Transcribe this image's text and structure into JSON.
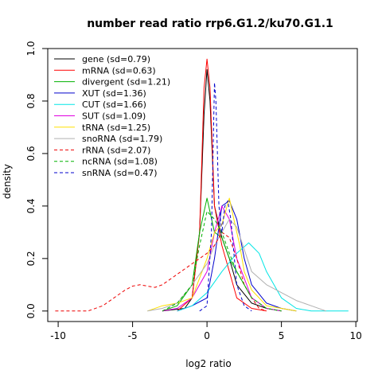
{
  "chart_data": {
    "type": "line",
    "title": "number read ratio rrp6.G1.2/ku70.G1.1",
    "xlabel": "log2 ratio",
    "ylabel": "density",
    "xlim": [
      -10.7,
      10.1
    ],
    "ylim": [
      -0.04,
      1.0
    ],
    "xticks": [
      -10,
      -5,
      0,
      5,
      10
    ],
    "xtick_labels": [
      "-10",
      "-5",
      "0",
      "5",
      "10"
    ],
    "yticks": [
      0.0,
      0.2,
      0.4,
      0.6,
      0.8,
      1.0
    ],
    "ytick_labels": [
      "0.0",
      "0.2",
      "0.4",
      "0.6",
      "0.8",
      "1.0"
    ],
    "grid": false,
    "legend_position": "top-left",
    "series": [
      {
        "name": "gene (sd=0.79)",
        "color": "#000000",
        "dash": "solid",
        "x": [
          -3,
          -1.5,
          -1,
          -0.5,
          -0.2,
          0,
          0.2,
          0.5,
          1,
          1.5,
          2,
          3,
          4,
          5
        ],
        "y": [
          0,
          0.01,
          0.05,
          0.3,
          0.75,
          0.92,
          0.8,
          0.4,
          0.28,
          0.2,
          0.1,
          0.03,
          0.01,
          0
        ]
      },
      {
        "name": "mRNA (sd=0.63)",
        "color": "#ff0000",
        "dash": "solid",
        "x": [
          -2,
          -1,
          -0.5,
          -0.2,
          0,
          0.2,
          0.5,
          1,
          1.5,
          2,
          3,
          4
        ],
        "y": [
          0,
          0.05,
          0.3,
          0.85,
          0.96,
          0.85,
          0.4,
          0.25,
          0.15,
          0.05,
          0.01,
          0
        ]
      },
      {
        "name": "divergent (sd=1.21)",
        "color": "#00b000",
        "dash": "solid",
        "x": [
          -3,
          -2,
          -1,
          -0.5,
          0,
          0.5,
          1,
          1.5,
          2,
          3,
          4,
          5
        ],
        "y": [
          0,
          0.02,
          0.1,
          0.3,
          0.43,
          0.3,
          0.28,
          0.2,
          0.15,
          0.05,
          0.01,
          0
        ]
      },
      {
        "name": "XUT (sd=1.36)",
        "color": "#0000cc",
        "dash": "solid",
        "x": [
          -2,
          -1,
          0,
          0.5,
          1,
          1.5,
          2,
          2.5,
          3,
          4,
          5,
          6
        ],
        "y": [
          0,
          0.02,
          0.05,
          0.2,
          0.4,
          0.42,
          0.35,
          0.2,
          0.1,
          0.03,
          0.01,
          0
        ]
      },
      {
        "name": "CUT (sd=1.66)",
        "color": "#00e5e5",
        "dash": "solid",
        "x": [
          -2,
          -1,
          0,
          1,
          2,
          2.8,
          3.5,
          4,
          5,
          6,
          7,
          9.5
        ],
        "y": [
          0,
          0.02,
          0.07,
          0.15,
          0.22,
          0.26,
          0.22,
          0.15,
          0.05,
          0.01,
          0,
          0
        ]
      },
      {
        "name": "SUT (sd=1.09)",
        "color": "#e000e0",
        "dash": "solid",
        "x": [
          -3,
          -2,
          -1,
          0,
          0.5,
          1,
          1.5,
          2,
          3,
          4,
          5
        ],
        "y": [
          0,
          0.01,
          0.05,
          0.15,
          0.3,
          0.4,
          0.35,
          0.2,
          0.05,
          0.01,
          0
        ]
      },
      {
        "name": "tRNA (sd=1.25)",
        "color": "#ffe000",
        "dash": "solid",
        "x": [
          -4,
          -3,
          -2,
          -1,
          0,
          0.5,
          1,
          1.5,
          1.8,
          2.2,
          2.5,
          3,
          4,
          5,
          6
        ],
        "y": [
          0,
          0.02,
          0.03,
          0.05,
          0.2,
          0.3,
          0.33,
          0.43,
          0.35,
          0.25,
          0.15,
          0.08,
          0.02,
          0.01,
          0
        ]
      },
      {
        "name": "snoRNA (sd=1.79)",
        "color": "#b0b0b0",
        "dash": "solid",
        "x": [
          -4,
          -3,
          -2,
          -1,
          0,
          0.5,
          1,
          1.5,
          2,
          3,
          4,
          5,
          6,
          7,
          8
        ],
        "y": [
          0,
          0.01,
          0.03,
          0.1,
          0.18,
          0.25,
          0.3,
          0.35,
          0.32,
          0.15,
          0.1,
          0.07,
          0.04,
          0.02,
          0
        ]
      },
      {
        "name": "rRNA (sd=2.07)",
        "color": "#ee0000",
        "dash": "dashed",
        "x": [
          -10.2,
          -8,
          -7,
          -6,
          -5.5,
          -5,
          -4.5,
          -4,
          -3.5,
          -3,
          -2.5,
          -2,
          -1.5,
          -1,
          -0.5,
          0,
          0.5,
          1,
          1.5,
          2,
          2.5,
          3,
          3.5,
          4
        ],
        "y": [
          0,
          0,
          0.02,
          0.06,
          0.08,
          0.095,
          0.1,
          0.095,
          0.09,
          0.1,
          0.12,
          0.14,
          0.16,
          0.18,
          0.2,
          0.22,
          0.25,
          0.3,
          0.28,
          0.2,
          0.1,
          0.05,
          0.01,
          0
        ]
      },
      {
        "name": "ncRNA (sd=1.08)",
        "color": "#00b000",
        "dash": "dashed",
        "x": [
          -3,
          -2,
          -1,
          -0.5,
          0,
          0.5,
          1,
          1.5,
          2,
          3,
          4,
          5
        ],
        "y": [
          0,
          0.03,
          0.1,
          0.25,
          0.38,
          0.35,
          0.3,
          0.22,
          0.15,
          0.05,
          0.01,
          0
        ]
      },
      {
        "name": "snRNA (sd=0.47)",
        "color": "#0000cc",
        "dash": "dashed",
        "x": [
          -0.5,
          0,
          0.3,
          0.5,
          0.6,
          0.8,
          1,
          1.2,
          1.4,
          1.6,
          2,
          2.5,
          3
        ],
        "y": [
          0,
          0.02,
          0.3,
          0.87,
          0.8,
          0.4,
          0.3,
          0.4,
          0.42,
          0.35,
          0.1,
          0.02,
          0
        ]
      }
    ]
  }
}
